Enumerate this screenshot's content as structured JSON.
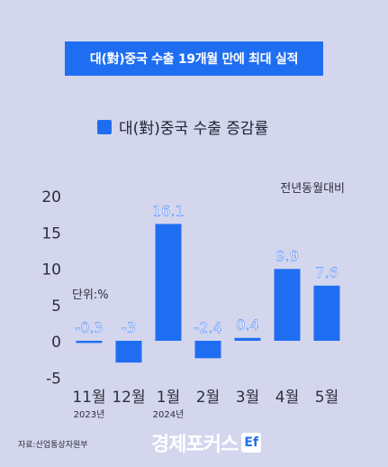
{
  "title": "대(對)중국 수출 19개월 만에 최대 실적",
  "legend_label": "대(對)중국 수출 증감률",
  "comparison_label": "전년동월대비",
  "unit_label": "단위:%",
  "source": "자료:산업통상자원부",
  "brand": "경제포커스",
  "brand_mark": "Ef",
  "colors": {
    "bar": "#1f6ef2",
    "background": "#d4d6ee",
    "title_bg": "#1f6ef2"
  },
  "chart_data": {
    "type": "bar",
    "categories": [
      "11월",
      "12월",
      "1월",
      "2월",
      "3월",
      "4월",
      "5월"
    ],
    "sublabels": [
      "2023년",
      "",
      "2024년",
      "",
      "",
      "",
      ""
    ],
    "values": [
      -0.3,
      -3,
      16.1,
      -2.4,
      0.4,
      9.9,
      7.6
    ],
    "value_labels": [
      "-0.3",
      "-3",
      "16.1",
      "-2.4",
      "0.4",
      "9.9",
      "7.6"
    ],
    "yticks": [
      20,
      15,
      10,
      5,
      0,
      -5
    ],
    "ylim": [
      -5,
      20
    ]
  }
}
